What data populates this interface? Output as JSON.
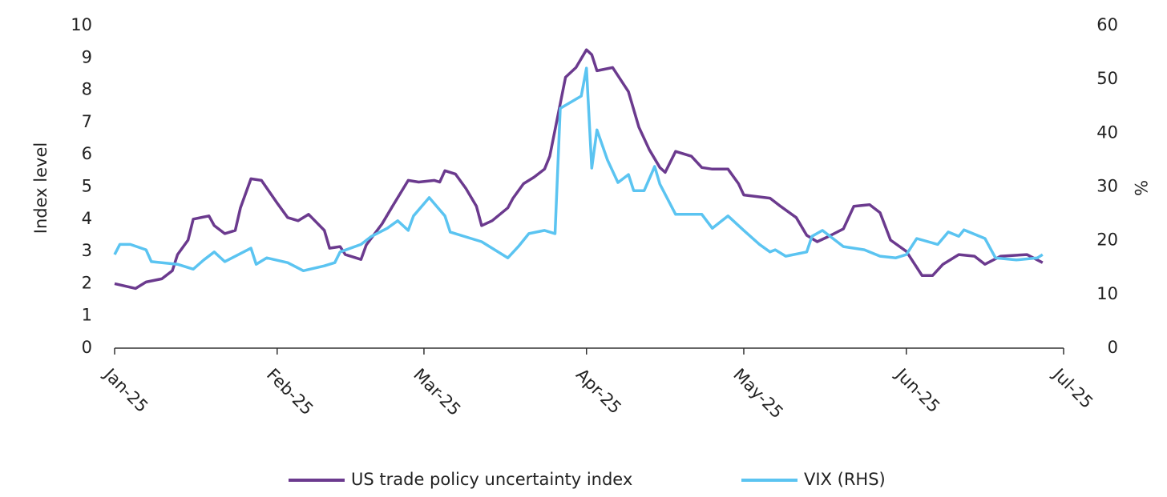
{
  "chart_data": {
    "type": "line",
    "y_label": "Index level",
    "y2_label": "%",
    "xlim": [
      0,
      181
    ],
    "xticks": [
      {
        "value": 0,
        "label": "Jan-25"
      },
      {
        "value": 31,
        "label": "Feb-25"
      },
      {
        "value": 59,
        "label": "Mar-25"
      },
      {
        "value": 90,
        "label": "Apr-25"
      },
      {
        "value": 120,
        "label": "May-25"
      },
      {
        "value": 151,
        "label": "Jun-25"
      },
      {
        "value": 181,
        "label": "Jul-25"
      }
    ],
    "ylim": [
      0,
      10
    ],
    "yticks": [
      0,
      1,
      2,
      3,
      4,
      5,
      6,
      7,
      8,
      9,
      10
    ],
    "y2lim": [
      0,
      60
    ],
    "y2ticks": [
      0,
      10,
      20,
      30,
      40,
      50,
      60
    ],
    "grid": false,
    "legend": "bottom",
    "series": [
      {
        "name": "US trade policy uncertainty index",
        "color": "#6b3a8e",
        "x": [
          0,
          4,
          6,
          9,
          11,
          12,
          14,
          15,
          18,
          19,
          21,
          23,
          24,
          26,
          28,
          31,
          33,
          35,
          37,
          40,
          41,
          43,
          44,
          47,
          48,
          51,
          53,
          56,
          58,
          61,
          62,
          63,
          65,
          67,
          69,
          70,
          72,
          75,
          76,
          78,
          80,
          82,
          83,
          86,
          88,
          90,
          91,
          92,
          95,
          98,
          100,
          102,
          104,
          105,
          107,
          110,
          112,
          114,
          117,
          119,
          120,
          125,
          127,
          130,
          132,
          134,
          136,
          139,
          141,
          144,
          146,
          148,
          151,
          154,
          156,
          158,
          161,
          164,
          166,
          169,
          174,
          177
        ],
        "values": [
          2.0,
          1.85,
          2.05,
          2.15,
          2.4,
          2.9,
          3.35,
          4.0,
          4.1,
          3.8,
          3.55,
          3.65,
          4.35,
          5.25,
          5.2,
          4.5,
          4.05,
          3.95,
          4.15,
          3.65,
          3.1,
          3.15,
          2.9,
          2.75,
          3.2,
          3.85,
          4.4,
          5.2,
          5.15,
          5.2,
          5.15,
          5.5,
          5.4,
          4.95,
          4.4,
          3.8,
          3.95,
          4.35,
          4.65,
          5.1,
          5.3,
          5.55,
          5.95,
          8.4,
          8.7,
          9.25,
          9.1,
          8.6,
          8.7,
          7.95,
          6.85,
          6.15,
          5.6,
          5.45,
          6.1,
          5.95,
          5.6,
          5.55,
          5.55,
          5.1,
          4.75,
          4.65,
          4.4,
          4.05,
          3.5,
          3.3,
          3.45,
          3.7,
          4.4,
          4.45,
          4.2,
          3.35,
          3.0,
          2.25,
          2.25,
          2.6,
          2.9,
          2.85,
          2.6,
          2.85,
          2.9,
          2.65
        ]
      },
      {
        "name": "VIX (RHS)",
        "color": "#5bc4f1",
        "axis": "y2",
        "x": [
          0,
          1,
          3,
          6,
          7,
          9,
          12,
          15,
          17,
          19,
          21,
          26,
          27,
          29,
          33,
          36,
          40,
          42,
          43,
          47,
          49,
          52,
          54,
          56,
          57,
          60,
          63,
          64,
          68,
          70,
          75,
          77,
          79,
          82,
          84,
          85,
          89,
          90,
          91,
          92,
          94,
          96,
          98,
          99,
          101,
          103,
          104,
          107,
          110,
          112,
          114,
          117,
          120,
          123,
          125,
          126,
          128,
          132,
          133,
          135,
          139,
          143,
          146,
          149,
          151,
          153,
          157,
          159,
          161,
          162,
          166,
          168,
          172,
          176,
          177
        ],
        "values": [
          17.4,
          19.3,
          19.3,
          18.3,
          16.1,
          15.9,
          15.6,
          14.7,
          16.4,
          17.9,
          16.1,
          18.6,
          15.6,
          16.8,
          15.9,
          14.4,
          15.3,
          15.9,
          17.9,
          19.3,
          20.8,
          22.3,
          23.7,
          21.9,
          24.6,
          28.0,
          24.6,
          21.6,
          20.4,
          19.8,
          16.8,
          18.9,
          21.3,
          21.9,
          21.3,
          44.6,
          46.9,
          52.1,
          33.5,
          40.6,
          35.0,
          30.8,
          32.3,
          29.3,
          29.3,
          33.8,
          30.5,
          24.9,
          24.9,
          24.9,
          22.3,
          24.6,
          21.9,
          19.3,
          17.9,
          18.3,
          17.1,
          17.9,
          20.8,
          21.9,
          18.9,
          18.3,
          17.1,
          16.8,
          17.4,
          20.4,
          19.3,
          21.6,
          20.8,
          22.0,
          20.4,
          16.8,
          16.4,
          16.8,
          17.4
        ]
      }
    ]
  }
}
